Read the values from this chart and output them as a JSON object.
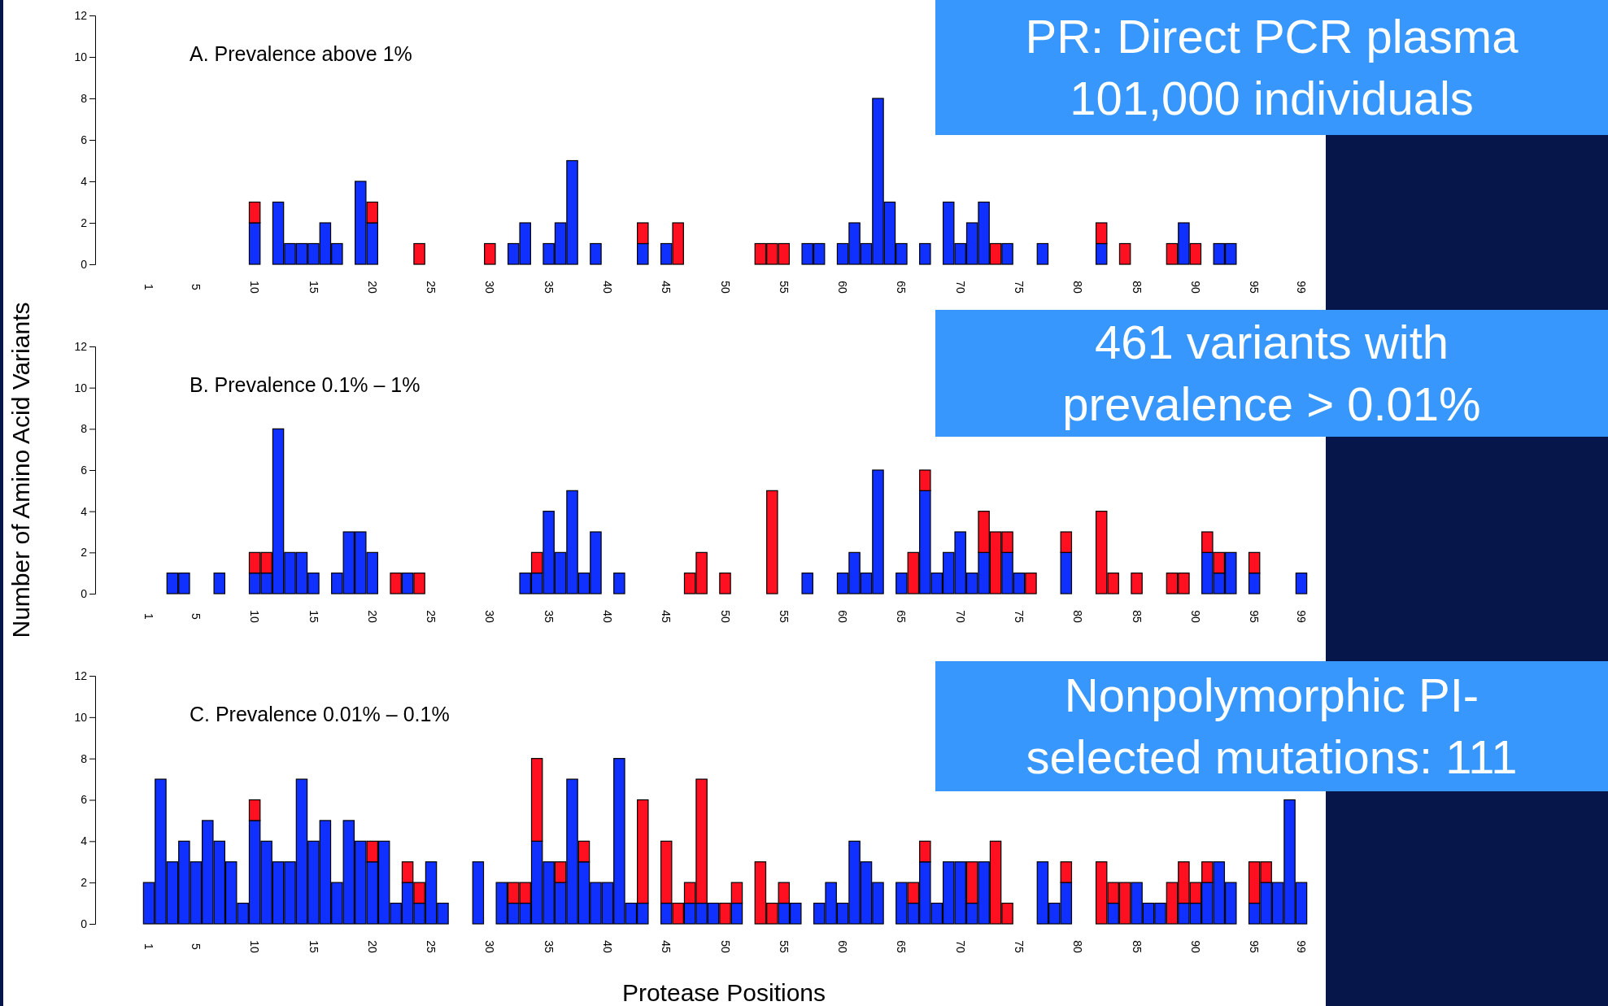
{
  "chart_data": [
    {
      "type": "bar",
      "stacked": true,
      "title": "A. Prevalence above 1%",
      "categories": [
        "1",
        null,
        null,
        null,
        "5",
        null,
        null,
        null,
        null,
        "10",
        null,
        null,
        null,
        null,
        "15",
        null,
        null,
        null,
        null,
        "20",
        null,
        null,
        null,
        null,
        "25",
        null,
        null,
        null,
        null,
        "30",
        null,
        null,
        null,
        null,
        "35",
        null,
        null,
        null,
        null,
        "40",
        null,
        null,
        null,
        null,
        "45",
        null,
        null,
        null,
        null,
        "50",
        null,
        null,
        null,
        null,
        "55",
        null,
        null,
        null,
        null,
        "60",
        null,
        null,
        null,
        null,
        "65",
        null,
        null,
        null,
        null,
        "70",
        null,
        null,
        null,
        null,
        "75",
        null,
        null,
        null,
        null,
        "80",
        null,
        null,
        null,
        null,
        "85",
        null,
        null,
        null,
        null,
        "90",
        null,
        null,
        null,
        null,
        "95",
        null,
        null,
        null,
        "99"
      ],
      "series": [
        {
          "color": "#1030ff",
          "values": [
            0,
            0,
            0,
            0,
            0,
            0,
            0,
            0,
            0,
            2,
            0,
            3,
            1,
            1,
            1,
            2,
            1,
            0,
            4,
            2,
            0,
            0,
            0,
            0,
            0,
            0,
            0,
            0,
            0,
            0,
            0,
            1,
            2,
            0,
            1,
            2,
            5,
            0,
            1,
            0,
            0,
            0,
            1,
            0,
            1,
            0,
            0,
            0,
            0,
            0,
            0,
            0,
            0,
            0,
            0,
            0,
            1,
            1,
            0,
            1,
            2,
            1,
            8,
            3,
            1,
            0,
            1,
            0,
            3,
            1,
            2,
            3,
            0,
            1,
            0,
            0,
            1,
            0,
            0,
            0,
            0,
            1,
            0,
            0,
            0,
            0,
            0,
            0,
            2,
            0,
            0,
            1,
            1,
            0,
            0,
            0,
            0,
            0,
            0
          ]
        },
        {
          "color": "#ff1020",
          "values": [
            0,
            0,
            0,
            0,
            0,
            0,
            0,
            0,
            0,
            1,
            0,
            0,
            0,
            0,
            0,
            0,
            0,
            0,
            0,
            1,
            0,
            0,
            0,
            1,
            0,
            0,
            0,
            0,
            0,
            1,
            0,
            0,
            0,
            0,
            0,
            0,
            0,
            0,
            0,
            0,
            0,
            0,
            1,
            0,
            0,
            2,
            0,
            0,
            0,
            0,
            0,
            0,
            1,
            1,
            1,
            0,
            0,
            0,
            0,
            0,
            0,
            0,
            0,
            0,
            0,
            0,
            0,
            0,
            0,
            0,
            0,
            0,
            1,
            0,
            0,
            0,
            0,
            0,
            0,
            0,
            0,
            1,
            0,
            1,
            0,
            0,
            0,
            1,
            0,
            1,
            0,
            0,
            0,
            0,
            0,
            0,
            0,
            0,
            0
          ]
        }
      ],
      "ylim": [
        0,
        12
      ],
      "yticks": [
        0,
        2,
        4,
        6,
        8,
        10,
        12
      ],
      "annotations": [
        "PR: Direct PCR plasma 101,000 individuals"
      ]
    },
    {
      "type": "bar",
      "stacked": true,
      "title": "B. Prevalence 0.1% – 1%",
      "ylabel": "Number of Amino Acid Variants",
      "categories": [
        "1",
        null,
        null,
        null,
        "5",
        null,
        null,
        null,
        null,
        "10",
        null,
        null,
        null,
        null,
        "15",
        null,
        null,
        null,
        null,
        "20",
        null,
        null,
        null,
        null,
        "25",
        null,
        null,
        null,
        null,
        "30",
        null,
        null,
        null,
        null,
        "35",
        null,
        null,
        null,
        null,
        "40",
        null,
        null,
        null,
        null,
        "45",
        null,
        null,
        null,
        null,
        "50",
        null,
        null,
        null,
        null,
        "55",
        null,
        null,
        null,
        null,
        "60",
        null,
        null,
        null,
        null,
        "65",
        null,
        null,
        null,
        null,
        "70",
        null,
        null,
        null,
        null,
        "75",
        null,
        null,
        null,
        null,
        "80",
        null,
        null,
        null,
        null,
        "85",
        null,
        null,
        null,
        null,
        "90",
        null,
        null,
        null,
        null,
        "95",
        null,
        null,
        null,
        "99"
      ],
      "series": [
        {
          "color": "#1030ff",
          "values": [
            0,
            0,
            1,
            1,
            0,
            0,
            1,
            0,
            0,
            1,
            1,
            8,
            2,
            2,
            1,
            0,
            1,
            3,
            3,
            2,
            0,
            0,
            1,
            0,
            0,
            0,
            0,
            0,
            0,
            0,
            0,
            0,
            1,
            1,
            4,
            2,
            5,
            1,
            3,
            0,
            1,
            0,
            0,
            0,
            0,
            0,
            0,
            0,
            0,
            0,
            0,
            0,
            0,
            0,
            0,
            0,
            1,
            0,
            0,
            1,
            2,
            1,
            6,
            0,
            1,
            0,
            5,
            1,
            2,
            3,
            1,
            2,
            0,
            2,
            1,
            0,
            0,
            0,
            2,
            0,
            0,
            0,
            0,
            0,
            0,
            0,
            0,
            0,
            0,
            0,
            2,
            1,
            2,
            0,
            1,
            0,
            0,
            0,
            1
          ]
        },
        {
          "color": "#ff1020",
          "values": [
            0,
            0,
            0,
            0,
            0,
            0,
            0,
            0,
            0,
            1,
            1,
            0,
            0,
            0,
            0,
            0,
            0,
            0,
            0,
            0,
            0,
            1,
            0,
            1,
            0,
            0,
            0,
            0,
            0,
            0,
            0,
            0,
            0,
            1,
            0,
            0,
            0,
            0,
            0,
            0,
            0,
            0,
            0,
            0,
            0,
            0,
            1,
            2,
            0,
            1,
            0,
            0,
            0,
            5,
            0,
            0,
            0,
            0,
            0,
            0,
            0,
            0,
            0,
            0,
            0,
            2,
            1,
            0,
            0,
            0,
            0,
            2,
            3,
            1,
            0,
            1,
            0,
            0,
            1,
            0,
            0,
            4,
            1,
            0,
            1,
            0,
            0,
            1,
            1,
            0,
            1,
            1,
            0,
            0,
            1,
            0,
            0,
            0,
            0
          ]
        }
      ],
      "ylim": [
        0,
        12
      ],
      "yticks": [
        0,
        2,
        4,
        6,
        8,
        10,
        12
      ],
      "annotations": [
        "461 variants with prevalence > 0.01%"
      ]
    },
    {
      "type": "bar",
      "stacked": true,
      "title": "C. Prevalence 0.01% – 0.1%",
      "xlabel": "Protease Positions",
      "categories": [
        "1",
        null,
        null,
        null,
        "5",
        null,
        null,
        null,
        null,
        "10",
        null,
        null,
        null,
        null,
        "15",
        null,
        null,
        null,
        null,
        "20",
        null,
        null,
        null,
        null,
        "25",
        null,
        null,
        null,
        null,
        "30",
        null,
        null,
        null,
        null,
        "35",
        null,
        null,
        null,
        null,
        "40",
        null,
        null,
        null,
        null,
        "45",
        null,
        null,
        null,
        null,
        "50",
        null,
        null,
        null,
        null,
        "55",
        null,
        null,
        null,
        null,
        "60",
        null,
        null,
        null,
        null,
        "65",
        null,
        null,
        null,
        null,
        "70",
        null,
        null,
        null,
        null,
        "75",
        null,
        null,
        null,
        null,
        "80",
        null,
        null,
        null,
        null,
        "85",
        null,
        null,
        null,
        null,
        "90",
        null,
        null,
        null,
        null,
        "95",
        null,
        null,
        null,
        "99"
      ],
      "series": [
        {
          "color": "#1030ff",
          "values": [
            2,
            7,
            3,
            4,
            3,
            5,
            4,
            3,
            1,
            5,
            4,
            3,
            3,
            7,
            4,
            5,
            2,
            5,
            4,
            3,
            4,
            1,
            2,
            1,
            3,
            1,
            0,
            0,
            3,
            0,
            2,
            1,
            1,
            4,
            3,
            2,
            7,
            3,
            2,
            2,
            8,
            1,
            1,
            0,
            1,
            0,
            1,
            1,
            1,
            0,
            1,
            0,
            0,
            0,
            1,
            1,
            0,
            1,
            2,
            1,
            4,
            3,
            2,
            0,
            2,
            1,
            3,
            1,
            3,
            3,
            1,
            3,
            0,
            0,
            0,
            0,
            3,
            1,
            2,
            0,
            0,
            0,
            1,
            0,
            2,
            1,
            1,
            0,
            1,
            1,
            2,
            3,
            2,
            0,
            1,
            2,
            2,
            6,
            2
          ]
        },
        {
          "color": "#ff1020",
          "values": [
            0,
            0,
            0,
            0,
            0,
            0,
            0,
            0,
            0,
            1,
            0,
            0,
            0,
            0,
            0,
            0,
            0,
            0,
            0,
            1,
            0,
            0,
            1,
            1,
            0,
            0,
            0,
            0,
            0,
            0,
            0,
            1,
            1,
            4,
            0,
            1,
            0,
            1,
            0,
            0,
            0,
            0,
            5,
            0,
            3,
            1,
            1,
            6,
            0,
            1,
            1,
            0,
            3,
            1,
            1,
            0,
            0,
            0,
            0,
            0,
            0,
            0,
            0,
            0,
            0,
            1,
            1,
            0,
            0,
            0,
            2,
            0,
            4,
            1,
            0,
            0,
            0,
            0,
            1,
            0,
            0,
            3,
            1,
            2,
            0,
            0,
            0,
            2,
            2,
            1,
            1,
            0,
            0,
            0,
            2,
            1,
            0,
            0,
            0
          ]
        }
      ],
      "ylim": [
        0,
        12
      ],
      "yticks": [
        0,
        2,
        4,
        6,
        8,
        10,
        12
      ],
      "annotations": [
        "Nonpolymorphic PI-selected mutations: 111"
      ]
    }
  ]
}
